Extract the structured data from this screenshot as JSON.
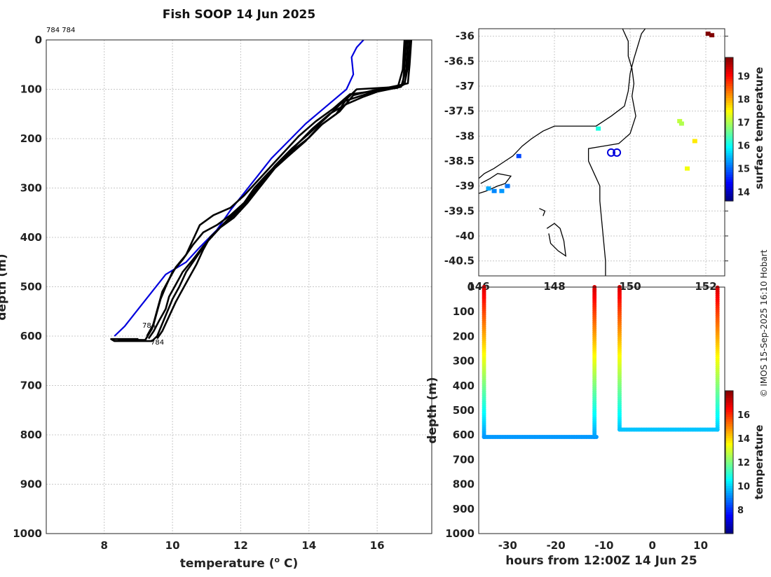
{
  "title": "Fish SOOP 14 Jun 2025",
  "credit": "© IMOS 15-Sep-2025 16:10 Hobart",
  "top_left_label": "784 784",
  "profile_end_labels": [
    "784",
    "784"
  ],
  "colors": {
    "profile": "#000000",
    "reference": "#0000dd",
    "grid": "#c8c8c8",
    "coast": "#000000",
    "marker": "#0000dd"
  },
  "chart_data": [
    {
      "type": "line",
      "name": "temperature-depth profiles",
      "xlabel": "temperature (o C)",
      "xlabel_parts": {
        "pre": "temperature (",
        "sup": "o",
        "post": " C)"
      },
      "ylabel": "depth (m)",
      "xlim": [
        6.3,
        17.6
      ],
      "ylim": [
        0,
        1000
      ],
      "y_reversed": true,
      "xticks": [
        8,
        10,
        12,
        14,
        16
      ],
      "yticks": [
        0,
        100,
        200,
        300,
        400,
        500,
        600,
        700,
        800,
        900,
        1000
      ],
      "grid": true,
      "series": [
        {
          "name": "reference",
          "color": "#0000dd",
          "points": [
            [
              15.6,
              0
            ],
            [
              15.4,
              15
            ],
            [
              15.25,
              35
            ],
            [
              15.3,
              70
            ],
            [
              15.1,
              100
            ],
            [
              14.5,
              135
            ],
            [
              13.9,
              170
            ],
            [
              13.4,
              205
            ],
            [
              12.9,
              240
            ],
            [
              12.5,
              275
            ],
            [
              12.1,
              310
            ],
            [
              11.7,
              345
            ],
            [
              11.3,
              385
            ],
            [
              10.8,
              420
            ],
            [
              10.4,
              450
            ],
            [
              9.8,
              475
            ],
            [
              9.4,
              510
            ],
            [
              9.0,
              545
            ],
            [
              8.6,
              580
            ],
            [
              8.3,
              600
            ]
          ]
        },
        {
          "name": "profile-1",
          "color": "#000000",
          "points": [
            [
              17.0,
              0
            ],
            [
              16.95,
              50
            ],
            [
              16.9,
              88
            ],
            [
              16.4,
              96
            ],
            [
              15.4,
              100
            ],
            [
              15.1,
              120
            ],
            [
              14.8,
              150
            ],
            [
              14.3,
              175
            ],
            [
              13.9,
              205
            ],
            [
              13.4,
              235
            ],
            [
              13.0,
              260
            ],
            [
              12.6,
              295
            ],
            [
              12.2,
              330
            ],
            [
              11.8,
              360
            ],
            [
              11.4,
              380
            ],
            [
              11.1,
              400
            ],
            [
              10.9,
              425
            ],
            [
              10.7,
              455
            ],
            [
              10.5,
              480
            ],
            [
              10.3,
              505
            ],
            [
              10.1,
              530
            ],
            [
              9.9,
              560
            ],
            [
              9.7,
              590
            ],
            [
              9.55,
              605
            ]
          ]
        },
        {
          "name": "profile-2",
          "color": "#000000",
          "points": [
            [
              16.85,
              0
            ],
            [
              16.8,
              55
            ],
            [
              16.75,
              92
            ],
            [
              15.9,
              102
            ],
            [
              15.3,
              112
            ],
            [
              14.9,
              145
            ],
            [
              14.4,
              170
            ],
            [
              14.0,
              198
            ],
            [
              13.5,
              225
            ],
            [
              13.1,
              250
            ],
            [
              12.7,
              280
            ],
            [
              12.3,
              315
            ],
            [
              11.9,
              345
            ],
            [
              11.5,
              372
            ],
            [
              11.2,
              395
            ],
            [
              10.9,
              418
            ],
            [
              10.6,
              445
            ],
            [
              10.3,
              470
            ],
            [
              10.1,
              495
            ],
            [
              9.9,
              520
            ],
            [
              9.8,
              545
            ],
            [
              9.6,
              570
            ],
            [
              9.45,
              590
            ],
            [
              9.3,
              605
            ]
          ]
        },
        {
          "name": "profile-3",
          "color": "#000000",
          "points": [
            [
              16.9,
              0
            ],
            [
              16.85,
              60
            ],
            [
              16.7,
              95
            ],
            [
              16.0,
              105
            ],
            [
              15.6,
              115
            ],
            [
              15.1,
              130
            ],
            [
              14.6,
              150
            ],
            [
              14.1,
              180
            ],
            [
              13.6,
              215
            ],
            [
              13.2,
              242
            ],
            [
              12.8,
              270
            ],
            [
              12.4,
              300
            ],
            [
              12.1,
              330
            ],
            [
              11.7,
              355
            ],
            [
              11.3,
              375
            ],
            [
              10.9,
              390
            ],
            [
              10.6,
              415
            ],
            [
              10.3,
              445
            ],
            [
              10.0,
              470
            ],
            [
              9.8,
              500
            ],
            [
              9.65,
              525
            ],
            [
              9.55,
              550
            ],
            [
              9.45,
              575
            ],
            [
              9.25,
              600
            ]
          ]
        },
        {
          "name": "profile-4",
          "color": "#000000",
          "points": [
            [
              16.8,
              0
            ],
            [
              16.75,
              60
            ],
            [
              16.6,
              97
            ],
            [
              15.2,
              110
            ],
            [
              14.7,
              140
            ],
            [
              14.2,
              165
            ],
            [
              13.7,
              195
            ],
            [
              13.3,
              225
            ],
            [
              12.9,
              255
            ],
            [
              12.5,
              285
            ],
            [
              12.1,
              315
            ],
            [
              11.7,
              340
            ],
            [
              11.2,
              355
            ],
            [
              10.8,
              375
            ],
            [
              10.6,
              405
            ],
            [
              10.4,
              435
            ],
            [
              10.1,
              460
            ],
            [
              9.9,
              485
            ],
            [
              9.7,
              510
            ],
            [
              9.6,
              535
            ],
            [
              9.5,
              560
            ],
            [
              9.4,
              585
            ],
            [
              9.2,
              608
            ],
            [
              8.4,
              607
            ]
          ]
        },
        {
          "name": "profile-5",
          "color": "#000000",
          "points": [
            [
              16.95,
              0
            ],
            [
              16.9,
              55
            ],
            [
              16.8,
              90
            ],
            [
              16.2,
              98
            ],
            [
              15.0,
              125
            ],
            [
              14.5,
              158
            ],
            [
              14.0,
              190
            ],
            [
              13.5,
              220
            ],
            [
              13.0,
              255
            ],
            [
              12.6,
              290
            ],
            [
              12.2,
              325
            ],
            [
              11.8,
              355
            ],
            [
              11.4,
              380
            ],
            [
              11.0,
              410
            ],
            [
              10.7,
              440
            ],
            [
              10.4,
              470
            ],
            [
              10.2,
              500
            ],
            [
              10.0,
              525
            ],
            [
              9.85,
              550
            ],
            [
              9.7,
              575
            ],
            [
              9.55,
              600
            ],
            [
              9.4,
              610
            ],
            [
              8.3,
              610
            ],
            [
              8.2,
              606
            ],
            [
              9.0,
              606
            ]
          ]
        }
      ]
    },
    {
      "type": "scatter",
      "name": "surface temperature map",
      "colorbar_label": "surface temperature",
      "xlim": [
        146,
        152.5
      ],
      "ylim": [
        -40.8,
        -35.85
      ],
      "xticks": [
        146,
        148,
        150,
        152
      ],
      "xtick_labels": [
        "146",
        "148",
        "150",
        "152"
      ],
      "yticks": [
        -36,
        -36.5,
        -37,
        -37.5,
        -38,
        -38.5,
        -39,
        -39.5,
        -40,
        -40.5
      ],
      "ytick_labels": [
        "-36",
        "-36.5",
        "-37",
        "-37.5",
        "-38",
        "-38.5",
        "-39",
        "-39.5",
        "-40",
        "-40.5"
      ],
      "grid": true,
      "clim": [
        13.6,
        19.8
      ],
      "colorbar_ticks": [
        14,
        15,
        16,
        17,
        18,
        19
      ],
      "points": [
        {
          "lon": 152.05,
          "lat": -35.95,
          "t": 19.8
        },
        {
          "lon": 152.15,
          "lat": -35.98,
          "t": 19.8
        },
        {
          "lon": 151.3,
          "lat": -37.7,
          "t": 17.1
        },
        {
          "lon": 151.35,
          "lat": -37.75,
          "t": 17.0
        },
        {
          "lon": 151.7,
          "lat": -38.1,
          "t": 17.6
        },
        {
          "lon": 151.5,
          "lat": -38.65,
          "t": 17.4
        },
        {
          "lon": 149.15,
          "lat": -37.85,
          "t": 16.1
        },
        {
          "lon": 147.05,
          "lat": -38.4,
          "t": 14.8
        },
        {
          "lon": 146.25,
          "lat": -39.05,
          "t": 15.4
        },
        {
          "lon": 146.4,
          "lat": -39.1,
          "t": 15.2
        },
        {
          "lon": 146.6,
          "lat": -39.1,
          "t": 15.3
        },
        {
          "lon": 146.75,
          "lat": -39.0,
          "t": 15.1
        }
      ],
      "markers": [
        {
          "lon": 149.5,
          "lat": -38.33
        },
        {
          "lon": 149.65,
          "lat": -38.33
        }
      ],
      "coastlines": [
        [
          [
            146.0,
            -38.85
          ],
          [
            146.15,
            -38.75
          ],
          [
            146.4,
            -38.65
          ],
          [
            146.6,
            -38.55
          ],
          [
            146.9,
            -38.4
          ],
          [
            147.15,
            -38.2
          ],
          [
            147.4,
            -38.05
          ],
          [
            147.7,
            -37.9
          ],
          [
            148.0,
            -37.8
          ],
          [
            148.3,
            -37.8
          ],
          [
            148.7,
            -37.8
          ],
          [
            149.1,
            -37.8
          ],
          [
            149.5,
            -37.6
          ],
          [
            149.85,
            -37.4
          ],
          [
            149.95,
            -37.1
          ],
          [
            150.0,
            -36.75
          ],
          [
            150.1,
            -36.45
          ],
          [
            150.2,
            -36.2
          ],
          [
            150.3,
            -35.95
          ],
          [
            150.4,
            -35.85
          ]
        ],
        [
          [
            149.8,
            -35.85
          ],
          [
            149.95,
            -36.1
          ],
          [
            149.95,
            -36.4
          ],
          [
            150.05,
            -36.65
          ],
          [
            150.1,
            -36.95
          ],
          [
            150.05,
            -37.2
          ],
          [
            150.15,
            -37.6
          ],
          [
            150.0,
            -37.95
          ],
          [
            149.7,
            -38.15
          ],
          [
            149.3,
            -38.2
          ],
          [
            148.9,
            -38.25
          ],
          [
            148.9,
            -38.5
          ],
          [
            149.05,
            -38.75
          ],
          [
            149.2,
            -39.0
          ],
          [
            149.2,
            -39.3
          ],
          [
            149.25,
            -39.7
          ],
          [
            149.3,
            -40.1
          ],
          [
            149.35,
            -40.5
          ],
          [
            149.35,
            -40.8
          ]
        ],
        [
          [
            146.0,
            -39.15
          ],
          [
            146.2,
            -39.1
          ],
          [
            146.5,
            -39.0
          ],
          [
            146.7,
            -38.95
          ],
          [
            146.85,
            -38.8
          ],
          [
            146.5,
            -38.75
          ],
          [
            146.3,
            -38.85
          ],
          [
            146.05,
            -38.95
          ]
        ],
        [
          [
            147.8,
            -39.85
          ],
          [
            148.0,
            -39.75
          ],
          [
            148.15,
            -39.85
          ],
          [
            148.25,
            -40.1
          ],
          [
            148.3,
            -40.4
          ],
          [
            148.1,
            -40.3
          ],
          [
            147.9,
            -40.15
          ],
          [
            147.85,
            -39.95
          ]
        ],
        [
          [
            147.6,
            -39.45
          ],
          [
            147.75,
            -39.5
          ],
          [
            147.7,
            -39.6
          ]
        ]
      ]
    },
    {
      "type": "scatter",
      "name": "depth-time section",
      "xlabel": "hours from 12:00Z 14 Jun 25",
      "ylabel": "depth (m)",
      "colorbar_label": "temperature",
      "xlim": [
        -36,
        15
      ],
      "ylim": [
        0,
        1000
      ],
      "y_reversed": true,
      "xticks": [
        -30,
        -20,
        -10,
        0,
        10
      ],
      "yticks": [
        0,
        100,
        200,
        300,
        400,
        500,
        600,
        700,
        800,
        900,
        1000
      ],
      "yticklabels": [
        "0",
        "100",
        "200",
        "300",
        "400",
        "500",
        "600",
        "700",
        "800",
        "900",
        "1000"
      ],
      "clim": [
        6,
        18
      ],
      "colorbar_ticks": [
        8,
        10,
        12,
        14,
        16
      ],
      "tracks": [
        {
          "x0": -34.9,
          "x1": -11.6,
          "depth": 608,
          "x_end": -12.0,
          "t_surface": 17.0,
          "t_bottom": 9.3
        },
        {
          "x0": -6.8,
          "x1": 13.5,
          "depth": 578,
          "x_end": 13.5,
          "t_surface": 17.0,
          "t_bottom": 9.8
        }
      ]
    }
  ]
}
